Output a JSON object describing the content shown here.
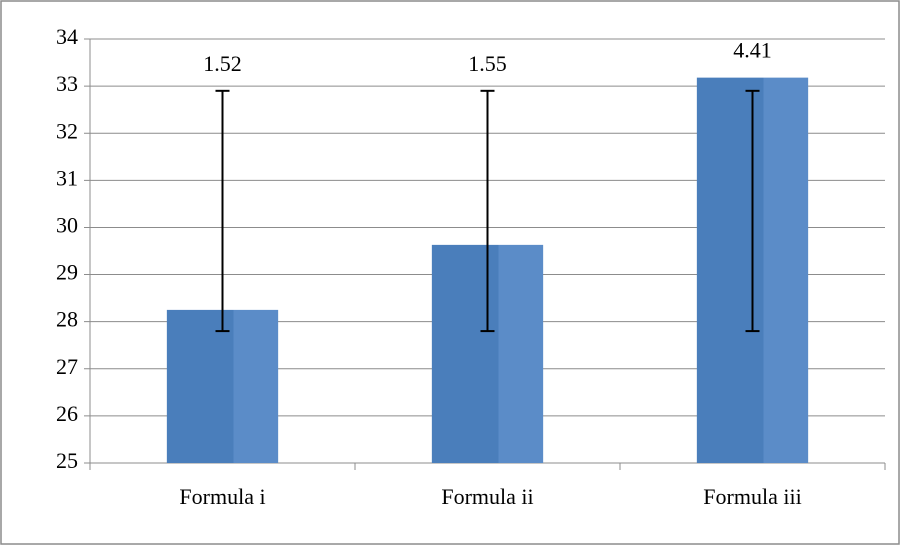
{
  "chart_data": {
    "type": "bar",
    "categories": [
      "Formula i",
      "Formula ii",
      "Formula iii"
    ],
    "values": [
      28.25,
      29.63,
      33.18
    ],
    "color": "#4f81bd",
    "error_low": [
      27.8,
      27.8,
      27.8
    ],
    "error_high": [
      32.9,
      32.9,
      32.9
    ],
    "annotations": [
      "1.52",
      "1.55",
      "4.41"
    ],
    "ylim": [
      25,
      34
    ],
    "yticks": [
      25,
      26,
      27,
      28,
      29,
      30,
      31,
      32,
      33,
      34
    ],
    "grid": true
  }
}
